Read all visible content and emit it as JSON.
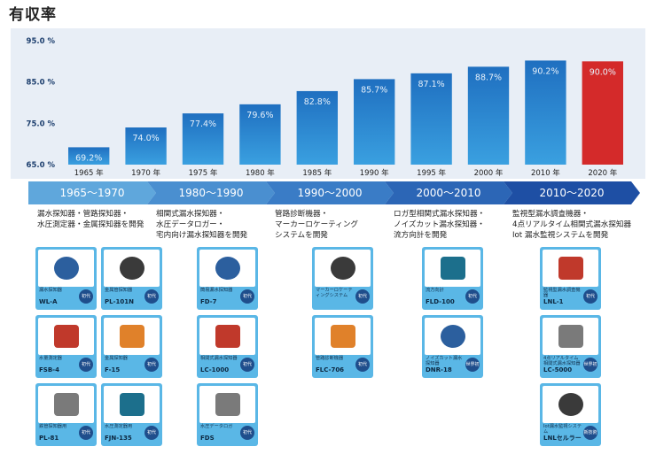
{
  "title": "有収率",
  "chart_data": {
    "type": "bar",
    "categories": [
      "1965 年",
      "1970 年",
      "1975 年",
      "1980 年",
      "1985 年",
      "1990 年",
      "1995 年",
      "2000 年",
      "2010 年",
      "2020 年"
    ],
    "values": [
      69.2,
      74.0,
      77.4,
      79.6,
      82.8,
      85.7,
      87.1,
      88.7,
      90.2,
      90.0
    ],
    "value_labels": [
      "69.2%",
      "74.0%",
      "77.4%",
      "79.6%",
      "82.8%",
      "85.7%",
      "87.1%",
      "88.7%",
      "90.2%",
      "90.0%"
    ],
    "ylim": [
      65,
      95
    ],
    "yticks": [
      65,
      75,
      85,
      95
    ],
    "ytick_labels": [
      "65.0 %",
      "75.0 %",
      "85.0 %",
      "95.0 %"
    ],
    "grid": false,
    "colors": {
      "bar_top": "#1f6fc0",
      "bar_bottom": "#3aa0e0",
      "highlight": "#d42a2a",
      "label_light": "#e6f0fa"
    }
  },
  "eras": [
    {
      "label": "1965〜1970",
      "color": "#5fa7dc",
      "desc": [
        "漏水探知器・管路探知器・",
        "水圧測定器・金属探知器を開発"
      ]
    },
    {
      "label": "1980〜1990",
      "color": "#4a8fd0",
      "desc": [
        "相関式漏水探知器・",
        "水圧データロガー・",
        "宅内向け漏水探知器を開発"
      ]
    },
    {
      "label": "1990〜2000",
      "color": "#3a7cc6",
      "desc": [
        "管路診断機器・",
        "マーカーロケーティング",
        "システムを開発"
      ]
    },
    {
      "label": "2000〜2010",
      "color": "#2c66b6",
      "desc": [
        "ロガ型相関式漏水探知器・",
        "ノイズカット漏水探知器・",
        "流方向計を開発"
      ]
    },
    {
      "label": "2010〜2020",
      "color": "#1e4fa4",
      "desc": [
        "監視型漏水調査機器・",
        "4点リアルタイム相関式漏水探知器",
        "Iot 漏水監視システムを開発"
      ]
    }
  ],
  "products": [
    {
      "name": "漏水探知器",
      "model": "WL-A",
      "badge": "初代"
    },
    {
      "name": "水量測定器",
      "model": "FSB-4",
      "badge": "初代"
    },
    {
      "name": "鉄管探知器用",
      "model": "PL-81",
      "badge": "初代"
    },
    {
      "name": "金属管探知器",
      "model": "PL-101N",
      "badge": "初代"
    },
    {
      "name": "金属探知器",
      "model": "F-15",
      "badge": "初代"
    },
    {
      "name": "水圧測定器用",
      "model": "FJN-135",
      "badge": "初代"
    },
    {
      "name": "簡易漏水探知器",
      "model": "FD-7",
      "badge": "初代"
    },
    {
      "name": "相関式漏水探知器",
      "model": "LC-1000",
      "badge": "初代"
    },
    {
      "name": "水圧データロガ",
      "model": "FDS",
      "badge": "初代"
    },
    {
      "name": "マーカーロケーティングシステム",
      "model": "",
      "badge": "初代"
    },
    {
      "name": "管路診断機器",
      "model": "FLC-706",
      "badge": "初代"
    },
    {
      "name": "流方向計",
      "model": "FLD-100",
      "badge": "初代"
    },
    {
      "name": "ノイズカット漏水探知器",
      "model": "DNR-18",
      "badge": "世界初"
    },
    {
      "name": "監視型漏水調査機器",
      "model": "LNL-1",
      "badge": "初代"
    },
    {
      "name": "4点リアルタイム相関式漏水探知器",
      "model": "LC-5000",
      "badge": "世界初"
    },
    {
      "name": "Iot漏水監視システム",
      "model": "LNLセルラー",
      "badge": "新技術"
    }
  ]
}
